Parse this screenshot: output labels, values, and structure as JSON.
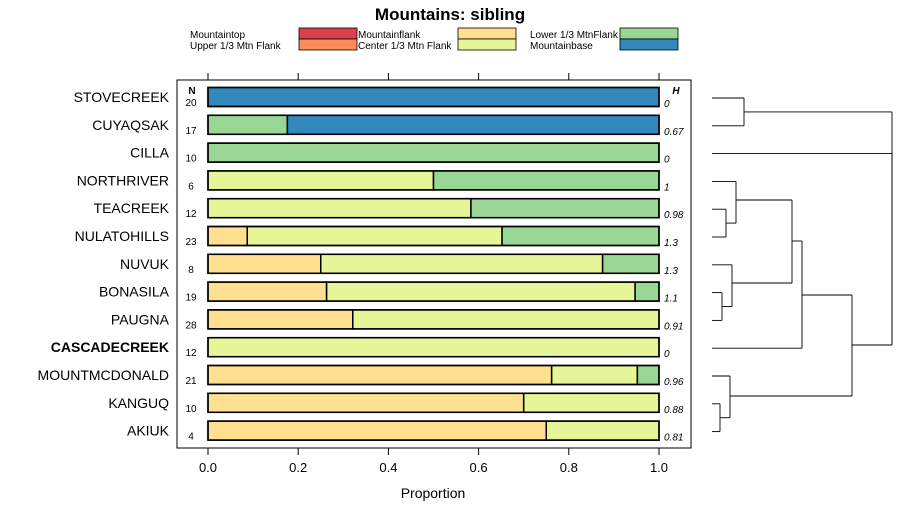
{
  "chart_data": {
    "type": "bar",
    "subtype": "stacked-horizontal-proportion",
    "title": "Mountains: sibling",
    "xlabel": "Proportion",
    "ylabel": "",
    "xlim": [
      0,
      1
    ],
    "x_ticks": [
      "0.0",
      "0.2",
      "0.4",
      "0.6",
      "0.8",
      "1.0"
    ],
    "x_tick_values": [
      0,
      0.2,
      0.4,
      0.6,
      0.8,
      1.0
    ],
    "n_header": "N",
    "h_header": "H",
    "legend": [
      {
        "name": "Mountaintop",
        "color": "#d7424b"
      },
      {
        "name": "Upper 1/3 Mtn Flank",
        "color": "#fc8d59"
      },
      {
        "name": "Mountainflank",
        "color": "#fee090"
      },
      {
        "name": "Center 1/3 Mtn Flank",
        "color": "#e6f598"
      },
      {
        "name": "Lower 1/3 MtnFlank",
        "color": "#99d594"
      },
      {
        "name": "Mountainbase",
        "color": "#3288bd"
      }
    ],
    "categories": [
      "STOVECREEK",
      "CUYAQSAK",
      "CILLA",
      "NORTHRIVER",
      "TEACREEK",
      "NULATOHILLS",
      "NUVUK",
      "BONASILA",
      "PAUGNA",
      "CASCADECREEK",
      "MOUNTMCDONALD",
      "KANGUQ",
      "AKIUK"
    ],
    "bold_category": "CASCADECREEK",
    "n": [
      "20",
      "17",
      "10",
      "6",
      "12",
      "23",
      "8",
      "19",
      "28",
      "12",
      "21",
      "10",
      "4"
    ],
    "h": [
      "0",
      "0.67",
      "0",
      "1",
      "0.98",
      "1.3",
      "1.3",
      "1.1",
      "0.91",
      "0",
      "0.96",
      "0.88",
      "0.81"
    ],
    "series": [
      {
        "name": "Mountaintop",
        "values": [
          0,
          0,
          0,
          0,
          0,
          0,
          0,
          0,
          0,
          0,
          0,
          0,
          0
        ]
      },
      {
        "name": "Upper 1/3 Mtn Flank",
        "values": [
          0,
          0,
          0,
          0,
          0,
          0,
          0,
          0,
          0,
          0,
          0,
          0,
          0
        ]
      },
      {
        "name": "Mountainflank",
        "values": [
          0,
          0,
          0,
          0,
          0,
          0.087,
          0.25,
          0.263,
          0.321,
          0,
          0.762,
          0.7,
          0.75
        ]
      },
      {
        "name": "Center 1/3 Mtn Flank",
        "values": [
          0,
          0,
          0,
          0.5,
          0.583,
          0.565,
          0.625,
          0.684,
          0.679,
          1.0,
          0.19,
          0.3,
          0.25
        ]
      },
      {
        "name": "Lower 1/3 MtnFlank",
        "values": [
          0,
          0.176,
          1.0,
          0.5,
          0.417,
          0.348,
          0.125,
          0.053,
          0,
          0,
          0.048,
          0,
          0
        ]
      },
      {
        "name": "Mountainbase",
        "values": [
          1.0,
          0.824,
          0,
          0,
          0,
          0,
          0,
          0,
          0,
          0,
          0,
          0,
          0
        ]
      }
    ],
    "dendrogram": "hierarchical clustering tree of the 13 sites, shown to the right of the bars"
  }
}
